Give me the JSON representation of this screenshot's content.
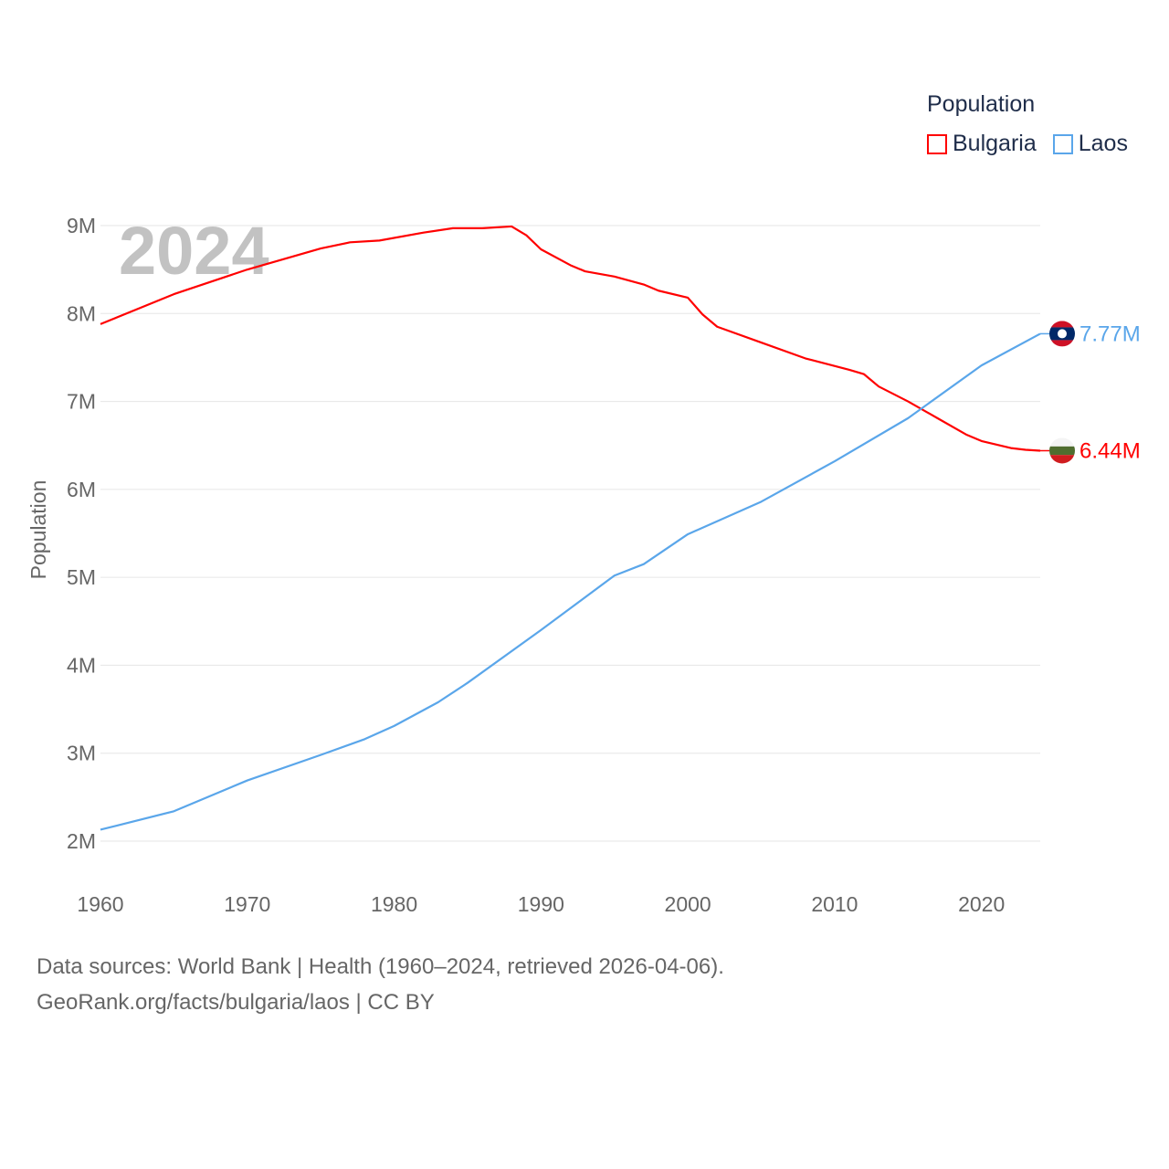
{
  "chart_data": {
    "type": "line",
    "title": "Population",
    "year_label": "2024",
    "xlabel": "",
    "ylabel": "Population",
    "xlim": [
      1960,
      2024
    ],
    "ylim": [
      2,
      9
    ],
    "y_unit": "millions",
    "x_ticks": [
      "1960",
      "1970",
      "1980",
      "1990",
      "2000",
      "2010",
      "2020"
    ],
    "y_ticks": [
      "2M",
      "3M",
      "4M",
      "5M",
      "6M",
      "7M",
      "8M",
      "9M"
    ],
    "grid": true,
    "legend": {
      "title": "Population",
      "placement": "top-right"
    },
    "series": [
      {
        "name": "Bulgaria",
        "color": "#ff0000",
        "end_label": "6.44M",
        "flag": "bulgaria-flag",
        "x": [
          1960,
          1965,
          1970,
          1975,
          1977,
          1979,
          1982,
          1984,
          1986,
          1988,
          1989,
          1990,
          1992,
          1993,
          1995,
          1997,
          1998,
          2000,
          2001,
          2002,
          2005,
          2008,
          2011,
          2012,
          2013,
          2015,
          2017,
          2019,
          2020,
          2022,
          2023,
          2024
        ],
        "y": [
          7.88,
          8.22,
          8.5,
          8.74,
          8.81,
          8.83,
          8.92,
          8.97,
          8.97,
          8.99,
          8.89,
          8.73,
          8.55,
          8.48,
          8.42,
          8.33,
          8.26,
          8.18,
          7.99,
          7.85,
          7.67,
          7.49,
          7.36,
          7.31,
          7.17,
          7.0,
          6.81,
          6.62,
          6.55,
          6.47,
          6.45,
          6.44
        ]
      },
      {
        "name": "Laos",
        "color": "#5aa6ea",
        "end_label": "7.77M",
        "flag": "laos-flag",
        "x": [
          1960,
          1965,
          1970,
          1975,
          1978,
          1980,
          1983,
          1985,
          1990,
          1995,
          1997,
          2000,
          2005,
          2010,
          2015,
          2020,
          2024
        ],
        "y": [
          2.13,
          2.34,
          2.69,
          2.98,
          3.16,
          3.31,
          3.58,
          3.8,
          4.4,
          5.02,
          5.15,
          5.49,
          5.86,
          6.32,
          6.81,
          7.41,
          7.77
        ]
      }
    ]
  },
  "footer": {
    "line1": "Data sources: World Bank | Health (1960–2024, retrieved 2026-04-06).",
    "line2": "GeoRank.org/facts/bulgaria/laos | CC BY"
  }
}
